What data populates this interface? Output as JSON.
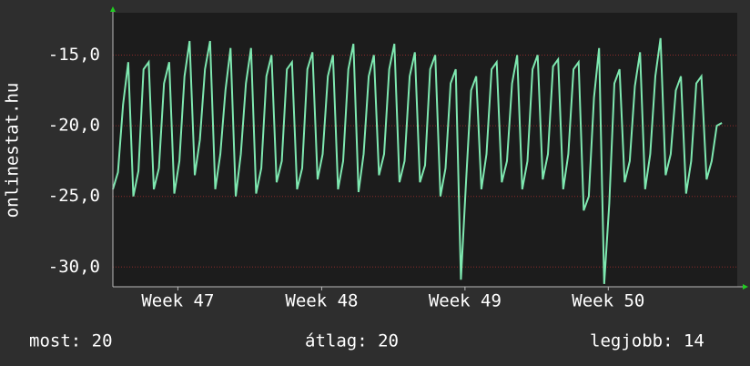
{
  "chart_data": {
    "type": "line",
    "ylabel": "onlinestat.hu",
    "xlim": [
      0,
      122
    ],
    "xticks": [
      {
        "value": 12.7,
        "label": "Week 47"
      },
      {
        "value": 40.8,
        "label": "Week 48"
      },
      {
        "value": 68.8,
        "label": "Week 49"
      },
      {
        "value": 96.8,
        "label": "Week 50"
      }
    ],
    "ylim": [
      -31.4,
      -12
    ],
    "yticks": [
      {
        "value": -15,
        "label": "-15,0"
      },
      {
        "value": -20,
        "label": "-20,0"
      },
      {
        "value": -25,
        "label": "-25,0"
      },
      {
        "value": -30,
        "label": "-30,0"
      }
    ],
    "grid": true,
    "series": [
      {
        "name": "onlinestat.hu",
        "color": "#7ee8b0",
        "values": [
          -24.5,
          -23.3,
          -18.5,
          -15.5,
          -25,
          -23.2,
          -16,
          -15.5,
          -24.5,
          -23,
          -17,
          -15.5,
          -24.8,
          -22.5,
          -16.5,
          -14,
          -23.5,
          -21,
          -16,
          -14,
          -24.5,
          -22,
          -17.5,
          -14.5,
          -25,
          -22,
          -17,
          -14.5,
          -24.8,
          -23,
          -16.5,
          -15,
          -24,
          -22.5,
          -16,
          -15.5,
          -24.5,
          -23,
          -16,
          -14.8,
          -23.8,
          -22,
          -16.5,
          -15,
          -24.5,
          -22.5,
          -16,
          -14.2,
          -24.7,
          -22,
          -16.5,
          -15,
          -23.5,
          -22,
          -16,
          -14.2,
          -24,
          -22.5,
          -16.5,
          -14.8,
          -24,
          -22.8,
          -16,
          -15,
          -25,
          -23,
          -17,
          -16,
          -30.9,
          -24,
          -17.5,
          -16.5,
          -24.5,
          -22,
          -16,
          -15.5,
          -24,
          -22.5,
          -17,
          -15,
          -24.5,
          -22.5,
          -16,
          -15,
          -23.8,
          -22,
          -15.8,
          -15.3,
          -24.5,
          -22,
          -16,
          -15.5,
          -26,
          -25,
          -18,
          -14.5,
          -31.2,
          -25.5,
          -17,
          -16,
          -24,
          -22.5,
          -17.2,
          -14.8,
          -24.5,
          -22,
          -16.5,
          -13.8,
          -23.5,
          -22,
          -17.5,
          -16.5,
          -24.8,
          -22.5,
          -17,
          -16.5,
          -23.8,
          -22.5,
          -20,
          -19.8
        ]
      }
    ]
  }
}
